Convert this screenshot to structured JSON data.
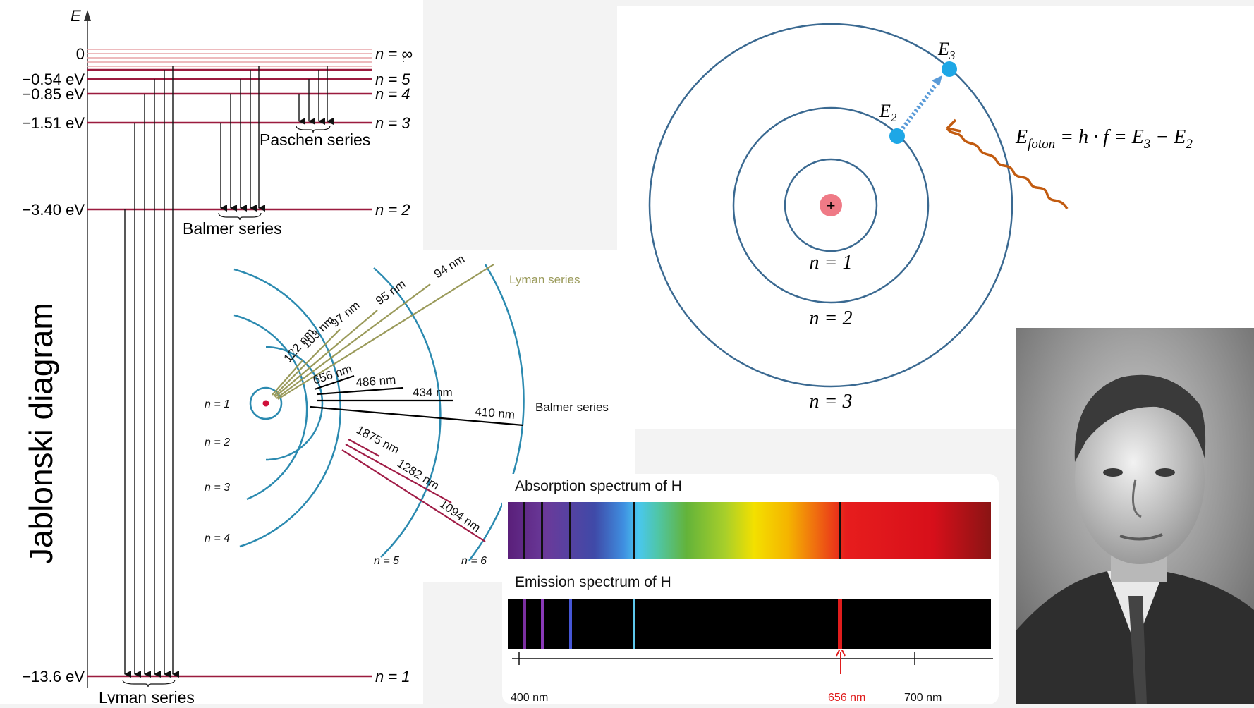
{
  "energy": {
    "axis": "E",
    "vertical_title": "Jablonski diagram",
    "levels": [
      {
        "energy": "0",
        "n": "n = ∞"
      },
      {
        "energy": "−0.54 eV",
        "n": "n = 5"
      },
      {
        "energy": "−0.85 eV",
        "n": "n = 4"
      },
      {
        "energy": "−1.51 eV",
        "n": "n = 3"
      },
      {
        "energy": "−3.40 eV",
        "n": "n = 2"
      },
      {
        "energy": "−13.6 eV",
        "n": "n = 1"
      }
    ],
    "series": {
      "paschen": "Paschen series",
      "balmer": "Balmer series",
      "lyman": "Lyman series"
    },
    "colors": {
      "level": "#9b1b3f",
      "high_levels": "#e7a3a7",
      "arrow": "#111111"
    }
  },
  "bohr": {
    "labels": {
      "e2": "E",
      "e2_sub": "2",
      "e3": "E",
      "e3_sub": "3"
    },
    "orbits": [
      "n = 1",
      "n = 2",
      "n = 3"
    ],
    "nucleus": "+",
    "formula": {
      "lhs": "E",
      "lhs_sub": "foton",
      "mid": " = h · f = E",
      "s3": "3",
      "minus": " − E",
      "s2": "2"
    },
    "colors": {
      "orbit": "#3a6991",
      "electron": "#1ea7e6",
      "photon": "#c25b10",
      "jump": "#5a9bd8",
      "nucleus": "#ef7a86"
    }
  },
  "orbits": {
    "levels": [
      "n = 1",
      "n = 2",
      "n = 3",
      "n = 4",
      "n = 5",
      "n = 6"
    ],
    "lyman": {
      "name": "Lyman series",
      "lines": [
        "122 nm",
        "103 nm",
        "97 nm",
        "95 nm",
        "94 nm"
      ],
      "color": "#9a9a5a"
    },
    "balmer": {
      "name": "Balmer series",
      "lines": [
        "656 nm",
        "486 nm",
        "434 nm",
        "410 nm"
      ],
      "color": "#000000"
    },
    "paschen": {
      "lines": [
        "1875 nm",
        "1282 nm",
        "1094 nm"
      ],
      "color": "#a01c46"
    },
    "ring_color": "#2b8ab0"
  },
  "spectra": {
    "absorption_title": "Absorption spectrum of H",
    "emission_title": "Emission spectrum of H",
    "axis_labels": [
      "400 nm",
      "656 nm",
      "700 nm"
    ],
    "emission_colors": [
      "#7b2fa0",
      "#8a3ab8",
      "#4656d6",
      "#5ec8ec",
      "#e01d1d"
    ],
    "marker_color": "#e01d1d"
  }
}
